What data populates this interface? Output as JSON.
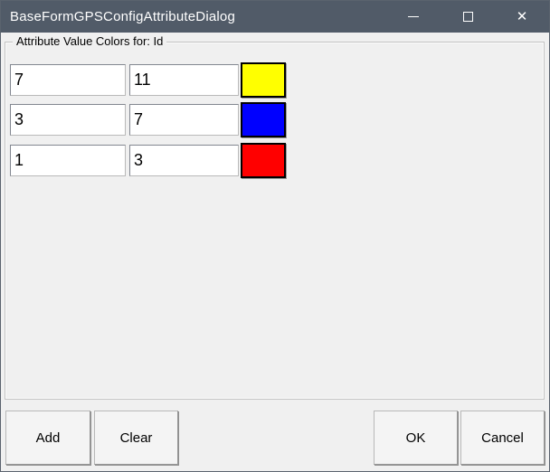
{
  "window": {
    "title": "BaseFormGPSConfigAttributeDialog",
    "titlebar_color": "#515b68",
    "controls": {
      "minimize_icon": "minimize",
      "maximize_icon": "maximize",
      "close_icon": "close",
      "close_glyph": "✕"
    }
  },
  "group": {
    "label": "Attribute Value Colors for: Id"
  },
  "rows": [
    {
      "field1": "7",
      "field2": "11",
      "color": "#ffff00",
      "color_name": "yellow"
    },
    {
      "field1": "3",
      "field2": "7",
      "color": "#0000ff",
      "color_name": "blue"
    },
    {
      "field1": "1",
      "field2": "3",
      "color": "#ff0000",
      "color_name": "red"
    }
  ],
  "buttons": {
    "add": "Add",
    "clear": "Clear",
    "ok": "OK",
    "cancel": "Cancel"
  }
}
